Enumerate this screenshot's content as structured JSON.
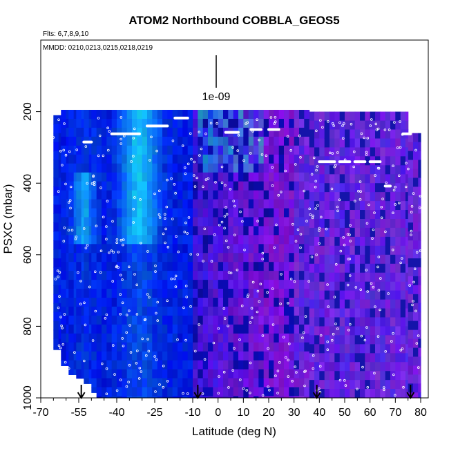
{
  "chart_data": {
    "type": "heatmap",
    "title": "ATOM2 Northbound COBBLA_GEOS5",
    "flights_note": "Flts: 6,7,8,9,10",
    "dates_note": "MMDD: 0210,0213,0215,0218,0219",
    "scale_label": "1e-09",
    "xlabel": "Latitude (deg N)",
    "ylabel": "PSXC (mbar)",
    "xlim": [
      -70,
      83
    ],
    "ylim": [
      1000,
      0
    ],
    "x_ticks": [
      -70,
      -55,
      -40,
      -25,
      -10,
      0,
      10,
      20,
      30,
      40,
      50,
      60,
      70,
      80
    ],
    "x_tick_labels": [
      "-70",
      "-55",
      "-40",
      "-25",
      "-10",
      "0",
      "10",
      "20",
      "30",
      "40",
      "50",
      "60",
      "70",
      "80"
    ],
    "y_ticks": [
      200,
      400,
      600,
      800,
      1000
    ],
    "y_tick_labels": [
      "200",
      "400",
      "600",
      "800",
      "1000"
    ],
    "latitude_columns": [
      {
        "lat_start": -65,
        "lat_end": -62,
        "top_p": 210,
        "bottom_p": 865
      },
      {
        "lat_start": -62,
        "lat_end": -59,
        "top_p": 195,
        "bottom_p": 910
      },
      {
        "lat_start": -59,
        "lat_end": -56,
        "top_p": 195,
        "bottom_p": 935
      },
      {
        "lat_start": -56,
        "lat_end": -53,
        "top_p": 195,
        "bottom_p": 945
      },
      {
        "lat_start": -53,
        "lat_end": -50,
        "top_p": 195,
        "bottom_p": 960
      },
      {
        "lat_start": -50,
        "lat_end": -48,
        "top_p": 195,
        "bottom_p": 985
      },
      {
        "lat_start": -48,
        "lat_end": 36,
        "top_p": 195,
        "bottom_p": 1000
      },
      {
        "lat_start": 36,
        "lat_end": 75,
        "top_p": 200,
        "bottom_p": 1000
      },
      {
        "lat_start": 75,
        "lat_end": 80,
        "top_p": 260,
        "bottom_p": 1000
      }
    ],
    "arrows_at_latitude": [
      -54,
      -8,
      39,
      76
    ]
  }
}
